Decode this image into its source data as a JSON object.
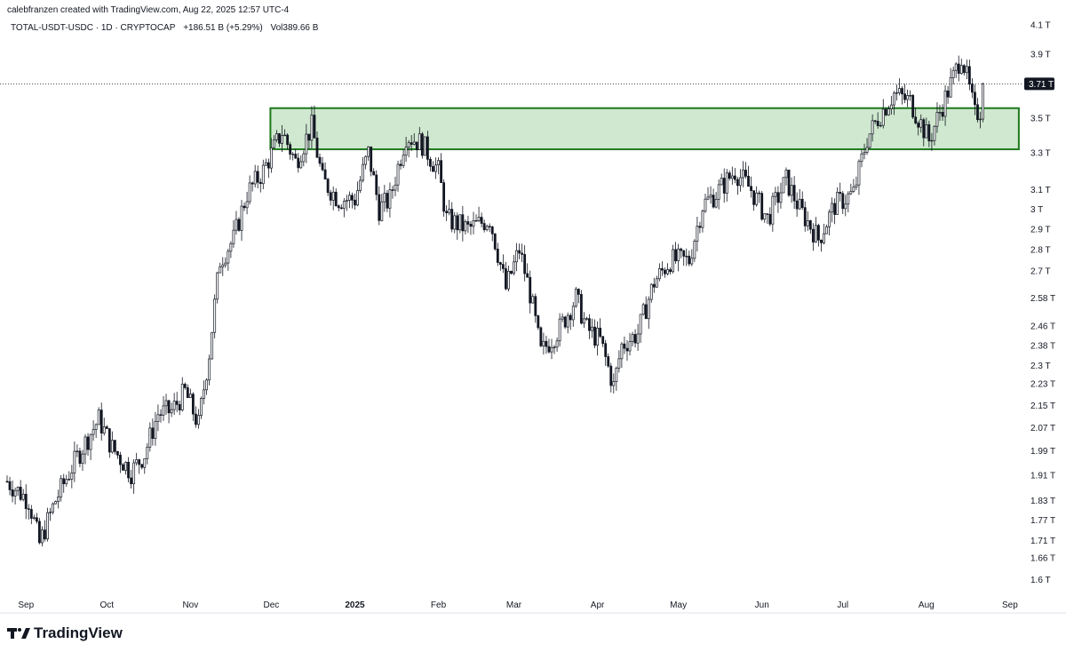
{
  "header": {
    "credit": "calebfranzen created with TradingView.com, Aug 22, 2025 12:57 UTC-4",
    "symbol": "TOTAL-USDT-USDC · 1D · CRYPTOCAP",
    "change": "+186.51 B (+5.29%)",
    "volume": "Vol389.66 B"
  },
  "brand": {
    "name": "TradingView"
  },
  "colors": {
    "zone_fill": "#cfe8cf",
    "zone_border": "#1e7a1e",
    "candle": "#131722",
    "price_tag": "#131722"
  },
  "chart_data": {
    "type": "candlestick",
    "title": "TOTAL-USDT-USDC",
    "y_scale": "log",
    "ylim": [
      1.57,
      4.15
    ],
    "x_range": [
      "2024-08-25",
      "2025-09-04"
    ],
    "x_ticks": [
      {
        "label": "Sep",
        "date": "2024-09-01"
      },
      {
        "label": "Oct",
        "date": "2024-10-01"
      },
      {
        "label": "Nov",
        "date": "2024-11-01"
      },
      {
        "label": "Dec",
        "date": "2024-12-01"
      },
      {
        "label": "2025",
        "date": "2025-01-01",
        "bold": true
      },
      {
        "label": "Feb",
        "date": "2025-02-01"
      },
      {
        "label": "Mar",
        "date": "2025-03-01"
      },
      {
        "label": "Apr",
        "date": "2025-04-01"
      },
      {
        "label": "May",
        "date": "2025-05-01"
      },
      {
        "label": "Jun",
        "date": "2025-06-01"
      },
      {
        "label": "Jul",
        "date": "2025-07-01"
      },
      {
        "label": "Aug",
        "date": "2025-08-01"
      },
      {
        "label": "Sep",
        "date": "2025-09-01"
      }
    ],
    "y_ticks": [
      {
        "label": "4.1 T",
        "value": 4.1
      },
      {
        "label": "3.9 T",
        "value": 3.9
      },
      {
        "label": "3.5 T",
        "value": 3.5
      },
      {
        "label": "3.3 T",
        "value": 3.3
      },
      {
        "label": "3.1 T",
        "value": 3.1
      },
      {
        "label": "3 T",
        "value": 3.0
      },
      {
        "label": "2.9 T",
        "value": 2.9
      },
      {
        "label": "2.8 T",
        "value": 2.8
      },
      {
        "label": "2.7 T",
        "value": 2.7
      },
      {
        "label": "2.58 T",
        "value": 2.58
      },
      {
        "label": "2.46 T",
        "value": 2.46
      },
      {
        "label": "2.38 T",
        "value": 2.38
      },
      {
        "label": "2.3 T",
        "value": 2.3
      },
      {
        "label": "2.23 T",
        "value": 2.23
      },
      {
        "label": "2.15 T",
        "value": 2.15
      },
      {
        "label": "2.07 T",
        "value": 2.07
      },
      {
        "label": "1.99 T",
        "value": 1.99
      },
      {
        "label": "1.91 T",
        "value": 1.91
      },
      {
        "label": "1.83 T",
        "value": 1.83
      },
      {
        "label": "1.77 T",
        "value": 1.77
      },
      {
        "label": "1.71 T",
        "value": 1.71
      },
      {
        "label": "1.66 T",
        "value": 1.66
      },
      {
        "label": "1.6 T",
        "value": 1.6
      }
    ],
    "last_price": {
      "value": 3.71,
      "label": "3.71 T"
    },
    "zone": {
      "low": 3.32,
      "high": 3.56,
      "start": "2024-12-01",
      "end": "2025-09-01"
    },
    "close_path": [
      {
        "date": "2024-08-25",
        "value": 1.89
      },
      {
        "date": "2024-09-02",
        "value": 1.83
      },
      {
        "date": "2024-09-06",
        "value": 1.7
      },
      {
        "date": "2024-09-12",
        "value": 1.83
      },
      {
        "date": "2024-09-20",
        "value": 1.97
      },
      {
        "date": "2024-09-28",
        "value": 2.1
      },
      {
        "date": "2024-10-03",
        "value": 2.0
      },
      {
        "date": "2024-10-10",
        "value": 1.92
      },
      {
        "date": "2024-10-15",
        "value": 1.98
      },
      {
        "date": "2024-10-20",
        "value": 2.12
      },
      {
        "date": "2024-10-25",
        "value": 2.13
      },
      {
        "date": "2024-10-30",
        "value": 2.2
      },
      {
        "date": "2024-11-04",
        "value": 2.08
      },
      {
        "date": "2024-11-08",
        "value": 2.35
      },
      {
        "date": "2024-11-12",
        "value": 2.75
      },
      {
        "date": "2024-11-17",
        "value": 2.85
      },
      {
        "date": "2024-11-22",
        "value": 3.08
      },
      {
        "date": "2024-11-28",
        "value": 3.2
      },
      {
        "date": "2024-12-05",
        "value": 3.42
      },
      {
        "date": "2024-12-10",
        "value": 3.25
      },
      {
        "date": "2024-12-16",
        "value": 3.45
      },
      {
        "date": "2024-12-20",
        "value": 3.15
      },
      {
        "date": "2024-12-26",
        "value": 3.05
      },
      {
        "date": "2025-01-01",
        "value": 3.05
      },
      {
        "date": "2025-01-06",
        "value": 3.3
      },
      {
        "date": "2025-01-10",
        "value": 3.0
      },
      {
        "date": "2025-01-14",
        "value": 3.05
      },
      {
        "date": "2025-01-20",
        "value": 3.4
      },
      {
        "date": "2025-01-26",
        "value": 3.35
      },
      {
        "date": "2025-02-01",
        "value": 3.2
      },
      {
        "date": "2025-02-04",
        "value": 2.95
      },
      {
        "date": "2025-02-12",
        "value": 2.9
      },
      {
        "date": "2025-02-20",
        "value": 2.95
      },
      {
        "date": "2025-02-26",
        "value": 2.62
      },
      {
        "date": "2025-03-03",
        "value": 2.8
      },
      {
        "date": "2025-03-07",
        "value": 2.6
      },
      {
        "date": "2025-03-11",
        "value": 2.35
      },
      {
        "date": "2025-03-18",
        "value": 2.45
      },
      {
        "date": "2025-03-24",
        "value": 2.58
      },
      {
        "date": "2025-03-28",
        "value": 2.45
      },
      {
        "date": "2025-04-02",
        "value": 2.4
      },
      {
        "date": "2025-04-07",
        "value": 2.22
      },
      {
        "date": "2025-04-10",
        "value": 2.38
      },
      {
        "date": "2025-04-16",
        "value": 2.43
      },
      {
        "date": "2025-04-22",
        "value": 2.65
      },
      {
        "date": "2025-04-28",
        "value": 2.75
      },
      {
        "date": "2025-05-05",
        "value": 2.75
      },
      {
        "date": "2025-05-10",
        "value": 3.02
      },
      {
        "date": "2025-05-15",
        "value": 3.08
      },
      {
        "date": "2025-05-22",
        "value": 3.2
      },
      {
        "date": "2025-05-28",
        "value": 3.1
      },
      {
        "date": "2025-06-03",
        "value": 2.95
      },
      {
        "date": "2025-06-10",
        "value": 3.15
      },
      {
        "date": "2025-06-15",
        "value": 3.0
      },
      {
        "date": "2025-06-22",
        "value": 2.85
      },
      {
        "date": "2025-06-28",
        "value": 3.02
      },
      {
        "date": "2025-07-05",
        "value": 3.08
      },
      {
        "date": "2025-07-10",
        "value": 3.38
      },
      {
        "date": "2025-07-14",
        "value": 3.5
      },
      {
        "date": "2025-07-20",
        "value": 3.65
      },
      {
        "date": "2025-07-26",
        "value": 3.6
      },
      {
        "date": "2025-08-02",
        "value": 3.37
      },
      {
        "date": "2025-08-07",
        "value": 3.58
      },
      {
        "date": "2025-08-11",
        "value": 3.75
      },
      {
        "date": "2025-08-14",
        "value": 3.9
      },
      {
        "date": "2025-08-19",
        "value": 3.52
      },
      {
        "date": "2025-08-21",
        "value": 3.55
      },
      {
        "date": "2025-08-22",
        "value": 3.71
      }
    ]
  }
}
